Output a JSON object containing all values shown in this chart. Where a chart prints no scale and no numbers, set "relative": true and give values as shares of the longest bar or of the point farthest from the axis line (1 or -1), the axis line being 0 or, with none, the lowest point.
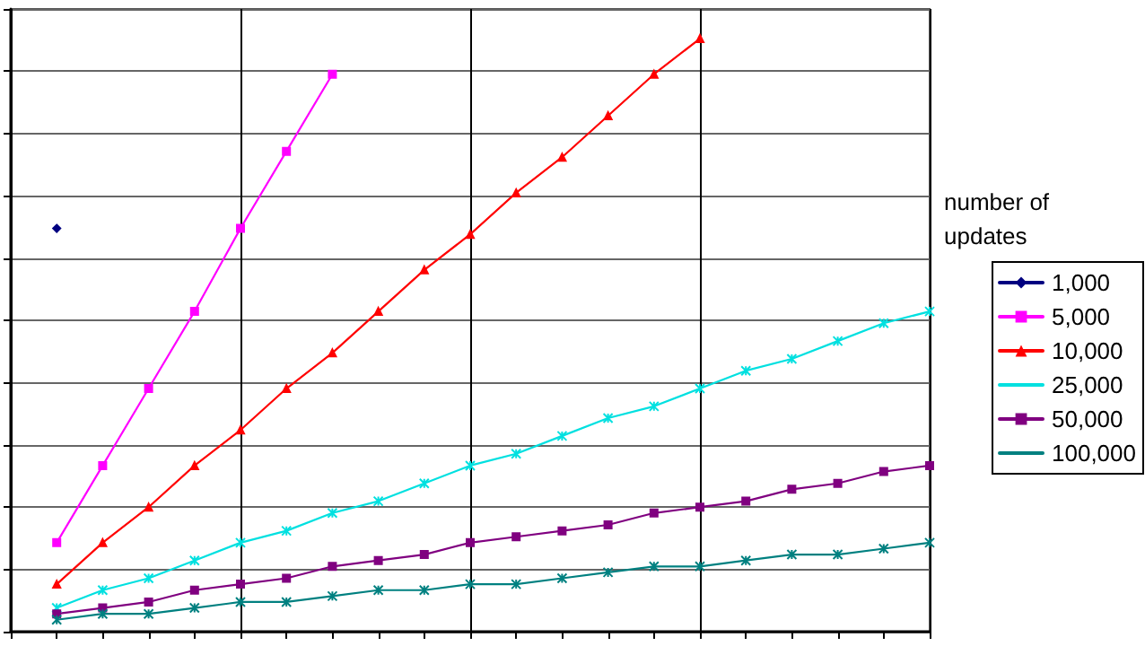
{
  "chart_data": {
    "type": "line",
    "relative": true,
    "legend_title": "number of updates",
    "legend": "right",
    "grid": true,
    "line_style": "solid",
    "categories": [
      null,
      null,
      null,
      null,
      null,
      null,
      null,
      null,
      null,
      null,
      null,
      null,
      null,
      null,
      null,
      null,
      null,
      null,
      null,
      null,
      null
    ],
    "series": [
      {
        "name": "1,000",
        "color": "#000080",
        "marker": "diamond",
        "values": [
          null,
          0.68,
          null,
          null,
          null,
          null,
          null,
          null,
          null,
          null,
          null,
          null,
          null,
          null,
          null,
          null,
          null,
          null,
          null,
          null,
          null
        ]
      },
      {
        "name": "5,000",
        "color": "#ff00ff",
        "marker": "square",
        "values": [
          null,
          0.15,
          0.28,
          0.41,
          0.54,
          0.68,
          0.81,
          0.94,
          null,
          null,
          null,
          null,
          null,
          null,
          null,
          null,
          null,
          null,
          null,
          null,
          null
        ]
      },
      {
        "name": "10,000",
        "color": "#ff0000",
        "marker": "triangle",
        "values": [
          null,
          0.08,
          0.15,
          0.21,
          0.28,
          0.34,
          0.41,
          0.47,
          0.54,
          0.61,
          0.67,
          0.74,
          0.8,
          0.87,
          0.94,
          1,
          null,
          null,
          null,
          null,
          null
        ]
      },
      {
        "name": "25,000",
        "color": "#00e0e0",
        "marker": "cross",
        "values": [
          null,
          0.04,
          0.07,
          0.09,
          0.12,
          0.15,
          0.17,
          0.2,
          0.22,
          0.25,
          0.28,
          0.3,
          0.33,
          0.36,
          0.38,
          0.41,
          0.44,
          0.46,
          0.49,
          0.52,
          0.54
        ]
      },
      {
        "name": "50,000",
        "color": "#800080",
        "marker": "square",
        "values": [
          null,
          0.03,
          0.04,
          0.05,
          0.07,
          0.08,
          0.09,
          0.11,
          0.12,
          0.13,
          0.15,
          0.16,
          0.17,
          0.18,
          0.2,
          0.21,
          0.22,
          0.24,
          0.25,
          0.27,
          0.28
        ]
      },
      {
        "name": "100,000",
        "color": "#008080",
        "marker": "cross",
        "values": [
          null,
          0.02,
          0.03,
          0.03,
          0.04,
          0.05,
          0.05,
          0.06,
          0.07,
          0.07,
          0.08,
          0.08,
          0.09,
          0.1,
          0.11,
          0.11,
          0.12,
          0.13,
          0.13,
          0.14,
          0.15
        ]
      }
    ]
  }
}
